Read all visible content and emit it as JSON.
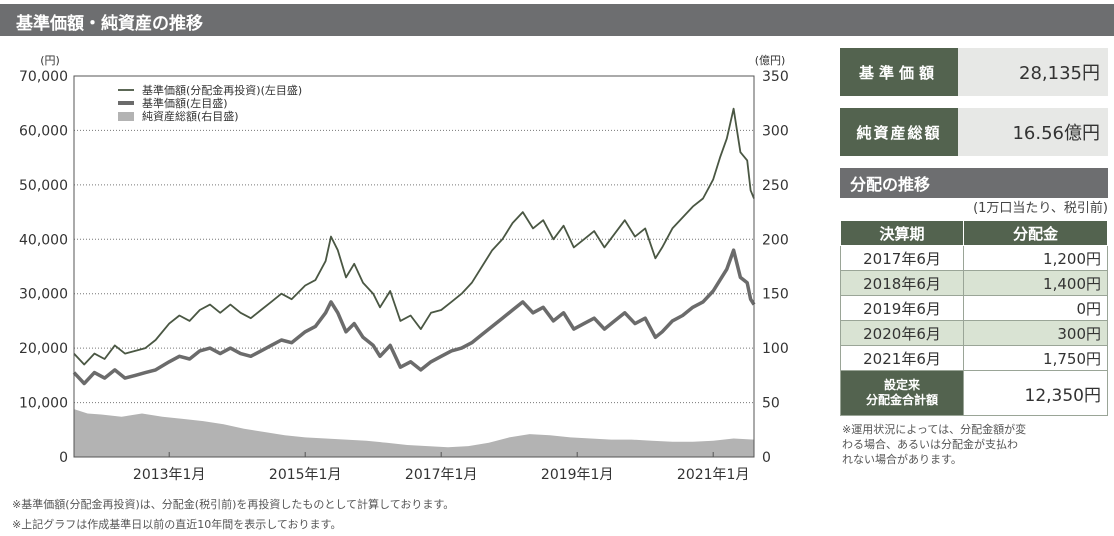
{
  "title": "基準価額・純資産の推移",
  "chart_data": {
    "type": "line",
    "left_axis_unit": "(円)",
    "right_axis_unit": "(億円)",
    "left_ylim": [
      0,
      70000
    ],
    "right_ylim": [
      0,
      350
    ],
    "left_ticks": [
      "0",
      "10,000",
      "20,000",
      "30,000",
      "40,000",
      "50,000",
      "60,000",
      "70,000"
    ],
    "right_ticks": [
      "0",
      "50",
      "100",
      "150",
      "200",
      "250",
      "300",
      "350"
    ],
    "x_ticks": [
      {
        "label": "2013年1月",
        "t": 2013.0
      },
      {
        "label": "2015年1月",
        "t": 2015.0
      },
      {
        "label": "2017年1月",
        "t": 2017.0
      },
      {
        "label": "2019年1月",
        "t": 2019.0
      },
      {
        "label": "2021年1月",
        "t": 2021.0
      }
    ],
    "x_range": [
      2011.6,
      2021.6
    ],
    "grid": true,
    "legend_position": "top-left",
    "series": [
      {
        "name": "基準価額(分配金再投資)(左目盛)",
        "axis": "left",
        "color": "#4a5743",
        "style": "line",
        "points": [
          [
            2011.6,
            19000
          ],
          [
            2011.75,
            17000
          ],
          [
            2011.9,
            19000
          ],
          [
            2012.05,
            18000
          ],
          [
            2012.2,
            20500
          ],
          [
            2012.35,
            19000
          ],
          [
            2012.5,
            19500
          ],
          [
            2012.65,
            20000
          ],
          [
            2012.8,
            21500
          ],
          [
            2013.0,
            24500
          ],
          [
            2013.15,
            26000
          ],
          [
            2013.3,
            25000
          ],
          [
            2013.45,
            27000
          ],
          [
            2013.6,
            28000
          ],
          [
            2013.75,
            26500
          ],
          [
            2013.9,
            28000
          ],
          [
            2014.05,
            26500
          ],
          [
            2014.2,
            25500
          ],
          [
            2014.35,
            27000
          ],
          [
            2014.5,
            28500
          ],
          [
            2014.65,
            30000
          ],
          [
            2014.8,
            29000
          ],
          [
            2015.0,
            31500
          ],
          [
            2015.15,
            32500
          ],
          [
            2015.3,
            36000
          ],
          [
            2015.38,
            40500
          ],
          [
            2015.48,
            38000
          ],
          [
            2015.6,
            33000
          ],
          [
            2015.72,
            35500
          ],
          [
            2015.85,
            32000
          ],
          [
            2016.0,
            30000
          ],
          [
            2016.1,
            27500
          ],
          [
            2016.25,
            30500
          ],
          [
            2016.4,
            25000
          ],
          [
            2016.55,
            26000
          ],
          [
            2016.7,
            23500
          ],
          [
            2016.85,
            26500
          ],
          [
            2017.0,
            27000
          ],
          [
            2017.15,
            28500
          ],
          [
            2017.3,
            30000
          ],
          [
            2017.45,
            32000
          ],
          [
            2017.6,
            35000
          ],
          [
            2017.75,
            38000
          ],
          [
            2017.9,
            40000
          ],
          [
            2018.05,
            43000
          ],
          [
            2018.2,
            45000
          ],
          [
            2018.35,
            42000
          ],
          [
            2018.5,
            43500
          ],
          [
            2018.65,
            40000
          ],
          [
            2018.8,
            42500
          ],
          [
            2018.95,
            38500
          ],
          [
            2019.1,
            40000
          ],
          [
            2019.25,
            41500
          ],
          [
            2019.4,
            38500
          ],
          [
            2019.55,
            41000
          ],
          [
            2019.7,
            43500
          ],
          [
            2019.85,
            40500
          ],
          [
            2020.0,
            42000
          ],
          [
            2020.15,
            36500
          ],
          [
            2020.25,
            38500
          ],
          [
            2020.4,
            42000
          ],
          [
            2020.55,
            44000
          ],
          [
            2020.7,
            46000
          ],
          [
            2020.85,
            47500
          ],
          [
            2021.0,
            51000
          ],
          [
            2021.1,
            55000
          ],
          [
            2021.2,
            58500
          ],
          [
            2021.3,
            64000
          ],
          [
            2021.4,
            56000
          ],
          [
            2021.5,
            54500
          ],
          [
            2021.55,
            49000
          ],
          [
            2021.6,
            47500
          ]
        ]
      },
      {
        "name": "基準価額(左目盛)",
        "axis": "left",
        "color": "#6b6b6b",
        "style": "thick",
        "points": [
          [
            2011.6,
            15500
          ],
          [
            2011.75,
            13500
          ],
          [
            2011.9,
            15500
          ],
          [
            2012.05,
            14500
          ],
          [
            2012.2,
            16000
          ],
          [
            2012.35,
            14500
          ],
          [
            2012.5,
            15000
          ],
          [
            2012.65,
            15500
          ],
          [
            2012.8,
            16000
          ],
          [
            2013.0,
            17500
          ],
          [
            2013.15,
            18500
          ],
          [
            2013.3,
            18000
          ],
          [
            2013.45,
            19500
          ],
          [
            2013.6,
            20000
          ],
          [
            2013.75,
            19000
          ],
          [
            2013.9,
            20000
          ],
          [
            2014.05,
            19000
          ],
          [
            2014.2,
            18500
          ],
          [
            2014.35,
            19500
          ],
          [
            2014.5,
            20500
          ],
          [
            2014.65,
            21500
          ],
          [
            2014.8,
            21000
          ],
          [
            2015.0,
            23000
          ],
          [
            2015.15,
            24000
          ],
          [
            2015.3,
            26500
          ],
          [
            2015.38,
            28500
          ],
          [
            2015.48,
            26500
          ],
          [
            2015.6,
            23000
          ],
          [
            2015.72,
            24500
          ],
          [
            2015.85,
            22000
          ],
          [
            2016.0,
            20500
          ],
          [
            2016.1,
            18500
          ],
          [
            2016.25,
            20500
          ],
          [
            2016.4,
            16500
          ],
          [
            2016.55,
            17500
          ],
          [
            2016.7,
            16000
          ],
          [
            2016.85,
            17500
          ],
          [
            2017.0,
            18500
          ],
          [
            2017.15,
            19500
          ],
          [
            2017.3,
            20000
          ],
          [
            2017.45,
            21000
          ],
          [
            2017.6,
            22500
          ],
          [
            2017.75,
            24000
          ],
          [
            2017.9,
            25500
          ],
          [
            2018.05,
            27000
          ],
          [
            2018.2,
            28500
          ],
          [
            2018.35,
            26500
          ],
          [
            2018.5,
            27500
          ],
          [
            2018.65,
            25000
          ],
          [
            2018.8,
            26500
          ],
          [
            2018.95,
            23500
          ],
          [
            2019.1,
            24500
          ],
          [
            2019.25,
            25500
          ],
          [
            2019.4,
            23500
          ],
          [
            2019.55,
            25000
          ],
          [
            2019.7,
            26500
          ],
          [
            2019.85,
            24500
          ],
          [
            2020.0,
            25500
          ],
          [
            2020.15,
            22000
          ],
          [
            2020.25,
            23000
          ],
          [
            2020.4,
            25000
          ],
          [
            2020.55,
            26000
          ],
          [
            2020.7,
            27500
          ],
          [
            2020.85,
            28500
          ],
          [
            2021.0,
            30500
          ],
          [
            2021.1,
            32500
          ],
          [
            2021.2,
            34500
          ],
          [
            2021.3,
            38000
          ],
          [
            2021.4,
            33000
          ],
          [
            2021.5,
            32000
          ],
          [
            2021.55,
            29000
          ],
          [
            2021.6,
            28000
          ]
        ]
      },
      {
        "name": "純資産総額(右目盛)",
        "axis": "right",
        "color": "#b3b3b3",
        "style": "area",
        "points": [
          [
            2011.6,
            44
          ],
          [
            2011.8,
            40
          ],
          [
            2012.0,
            39
          ],
          [
            2012.3,
            37
          ],
          [
            2012.6,
            40
          ],
          [
            2012.9,
            37
          ],
          [
            2013.2,
            35
          ],
          [
            2013.5,
            33
          ],
          [
            2013.8,
            30
          ],
          [
            2014.1,
            26
          ],
          [
            2014.4,
            23
          ],
          [
            2014.7,
            20
          ],
          [
            2015.0,
            18
          ],
          [
            2015.3,
            17
          ],
          [
            2015.6,
            16
          ],
          [
            2015.9,
            15
          ],
          [
            2016.2,
            13
          ],
          [
            2016.5,
            11
          ],
          [
            2016.8,
            10
          ],
          [
            2017.1,
            9
          ],
          [
            2017.4,
            10
          ],
          [
            2017.7,
            13
          ],
          [
            2018.0,
            18
          ],
          [
            2018.3,
            21
          ],
          [
            2018.6,
            20
          ],
          [
            2018.9,
            18
          ],
          [
            2019.2,
            17
          ],
          [
            2019.5,
            16
          ],
          [
            2019.8,
            16
          ],
          [
            2020.1,
            15
          ],
          [
            2020.4,
            14
          ],
          [
            2020.7,
            14
          ],
          [
            2021.0,
            15
          ],
          [
            2021.3,
            17
          ],
          [
            2021.6,
            16
          ]
        ]
      }
    ]
  },
  "stats": [
    {
      "label": "基準価額",
      "value": "28,135円"
    },
    {
      "label": "純資産総額",
      "value": "16.56億円"
    }
  ],
  "distribution": {
    "title": "分配の推移",
    "subtitle": "(1万口当たり、税引前)",
    "headers": [
      "決算期",
      "分配金"
    ],
    "rows": [
      {
        "period": "2017年6月",
        "amount": "1,200円"
      },
      {
        "period": "2018年6月",
        "amount": "1,400円"
      },
      {
        "period": "2019年6月",
        "amount": "0円"
      },
      {
        "period": "2020年6月",
        "amount": "300円"
      },
      {
        "period": "2021年6月",
        "amount": "1,750円"
      }
    ],
    "total_label_1": "設定来",
    "total_label_2": "分配金合計額",
    "total_amount": "12,350円",
    "note_lines": [
      "※運用状況によっては、分配金額が変",
      "わる場合、あるいは分配金が支払わ",
      "れない場合があります。"
    ]
  },
  "footnotes": [
    "※基準価額(分配金再投資)は、分配金(税引前)を再投資したものとして計算しております。",
    "※上記グラフは作成基準日以前の直近10年間を表示しております。"
  ]
}
